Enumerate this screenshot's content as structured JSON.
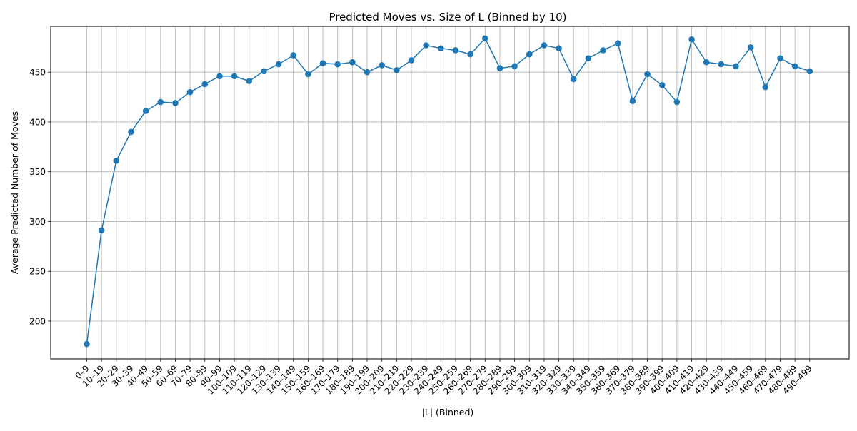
{
  "chart_data": {
    "type": "line",
    "title": "Predicted Moves vs. Size of L (Binned by 10)",
    "xlabel": "|L| (Binned)",
    "ylabel": "Average Predicted Number of Moves",
    "categories": [
      "0–9",
      "10–19",
      "20–29",
      "30–39",
      "40–49",
      "50–59",
      "60–69",
      "70–79",
      "80–89",
      "90–99",
      "100–109",
      "110–119",
      "120–129",
      "130–139",
      "140–149",
      "150–159",
      "160–169",
      "170–179",
      "180–189",
      "190–199",
      "200–209",
      "210–219",
      "220–229",
      "230–239",
      "240–249",
      "250–259",
      "260–269",
      "270–279",
      "280–289",
      "290–299",
      "300–309",
      "310–319",
      "320–329",
      "330–339",
      "340–349",
      "350–359",
      "360–369",
      "370–379",
      "380–389",
      "390–399",
      "400–409",
      "410–419",
      "420–429",
      "430–439",
      "440–449",
      "450–459",
      "460–469",
      "470–479",
      "480–489",
      "490–499"
    ],
    "series": [
      {
        "name": "",
        "color": "#1f77b4",
        "values": [
          177,
          291,
          361,
          390,
          411,
          420,
          419,
          430,
          438,
          446,
          446,
          441,
          451,
          458,
          467,
          448,
          459,
          458,
          460,
          450,
          457,
          452,
          462,
          477,
          474,
          472,
          468,
          484,
          454,
          456,
          468,
          477,
          474,
          443,
          464,
          472,
          479,
          421,
          448,
          437,
          420,
          483,
          460,
          458,
          456,
          475,
          435,
          464,
          456,
          451
        ]
      }
    ],
    "yticks": [
      200,
      250,
      300,
      350,
      400,
      450
    ],
    "ylim": [
      162,
      496
    ],
    "grid": true,
    "marker": "circle"
  }
}
